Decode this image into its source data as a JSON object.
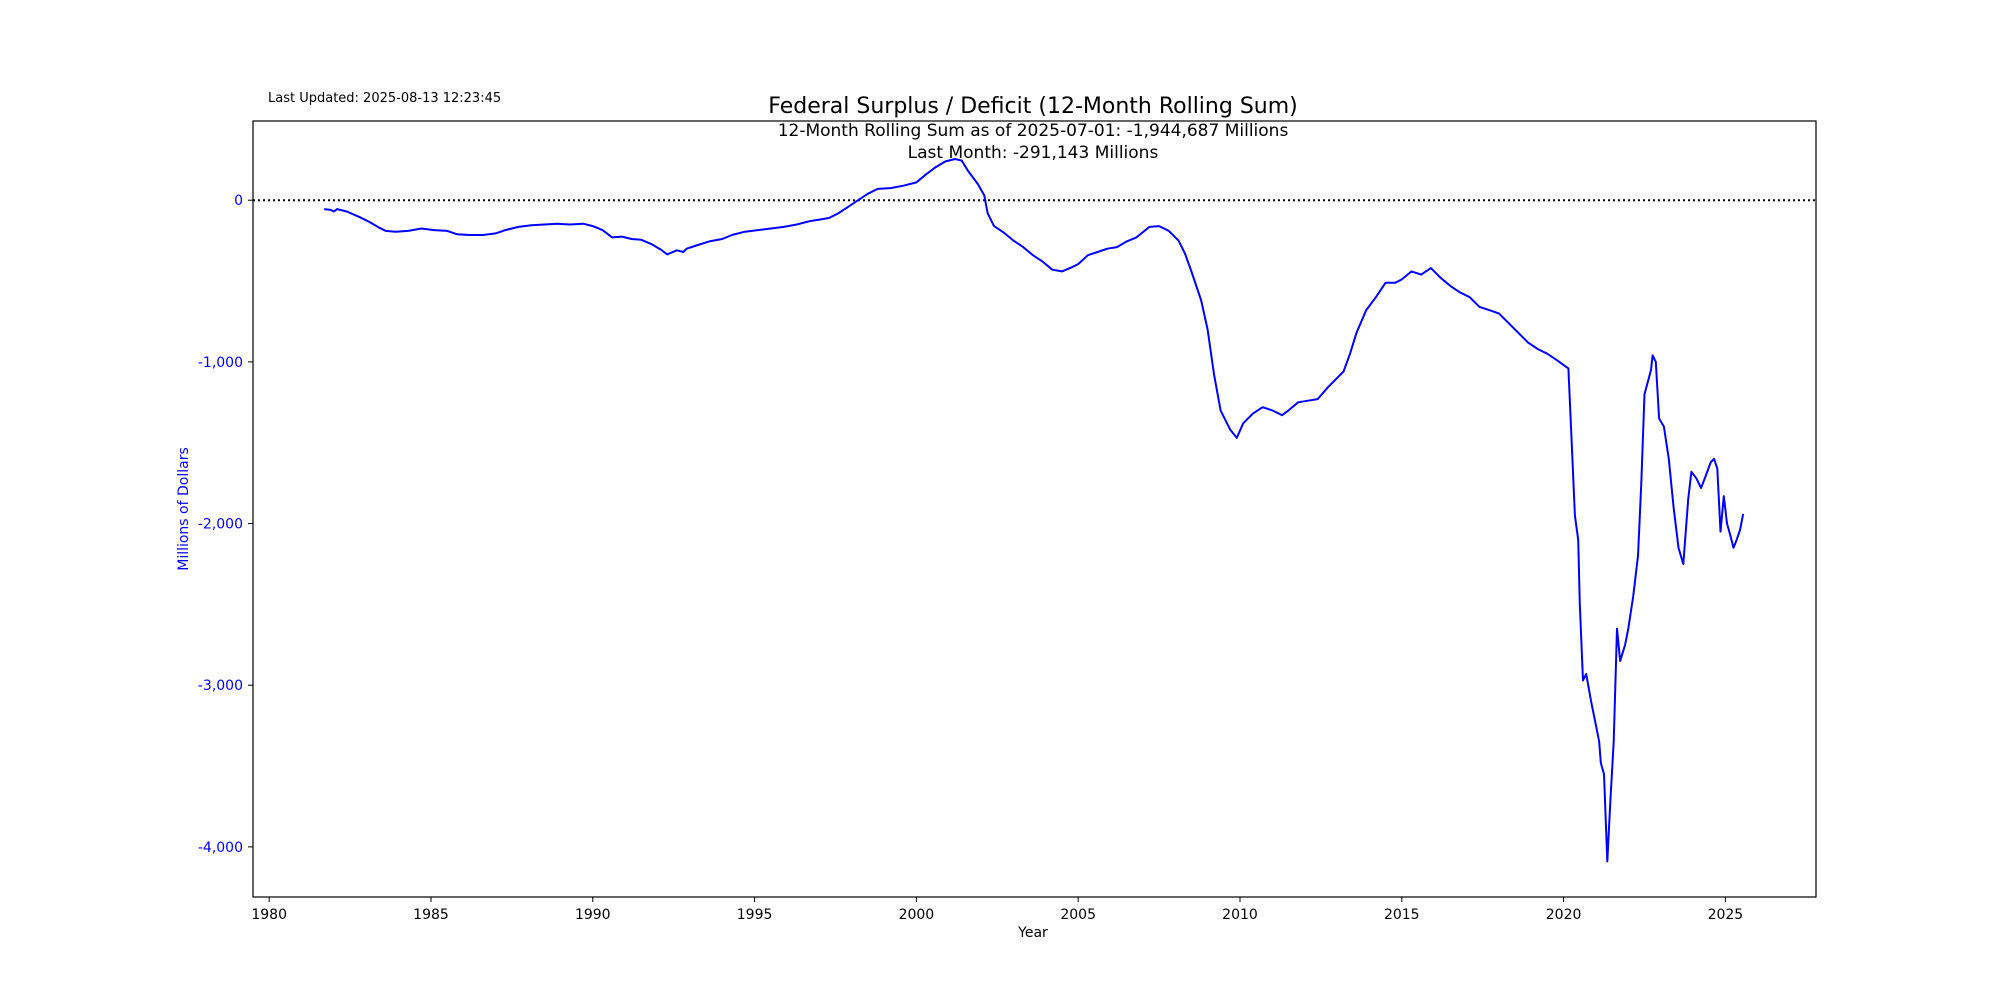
{
  "last_updated": "Last Updated: 2025-08-13 12:23:45",
  "chart_data": {
    "type": "line",
    "title": "Federal Surplus / Deficit (12-Month Rolling Sum)",
    "annotations": [
      "12-Month Rolling Sum as of 2025-07-01: -1,944,687 Millions",
      "Last Month: -291,143 Millions"
    ],
    "xlabel": "Year",
    "ylabel": "Millions of Dollars",
    "xlim": [
      1979.5,
      2027.8
    ],
    "ylim": [
      -4310,
      490
    ],
    "x_ticks": [
      1980,
      1985,
      1990,
      1995,
      2000,
      2005,
      2010,
      2015,
      2020,
      2025
    ],
    "x_tick_labels": [
      "1980",
      "1985",
      "1990",
      "1995",
      "2000",
      "2005",
      "2010",
      "2015",
      "2020",
      "2025"
    ],
    "y_ticks": [
      0,
      -1000,
      -2000,
      -3000,
      -4000
    ],
    "y_tick_labels": [
      "0",
      "-1,000",
      "-2,000",
      "-3,000",
      "-4,000"
    ],
    "reference_line": {
      "y": 0,
      "style": "dotted",
      "color": "#000000"
    },
    "grid": false,
    "colors": {
      "series": "#0000ff",
      "ylabel": "#0000ff",
      "yticks": "#0000ff"
    },
    "series": [
      {
        "points": [
          [
            1981.7,
            -55
          ],
          [
            1981.9,
            -60
          ],
          [
            1982.0,
            -70
          ],
          [
            1982.1,
            -55
          ],
          [
            1982.4,
            -70
          ],
          [
            1982.8,
            -105
          ],
          [
            1983.1,
            -135
          ],
          [
            1983.4,
            -170
          ],
          [
            1983.6,
            -190
          ],
          [
            1983.9,
            -195
          ],
          [
            1984.3,
            -190
          ],
          [
            1984.7,
            -175
          ],
          [
            1985.1,
            -185
          ],
          [
            1985.5,
            -190
          ],
          [
            1985.8,
            -210
          ],
          [
            1986.2,
            -215
          ],
          [
            1986.6,
            -215
          ],
          [
            1987.0,
            -205
          ],
          [
            1987.3,
            -185
          ],
          [
            1987.7,
            -165
          ],
          [
            1988.1,
            -155
          ],
          [
            1988.5,
            -150
          ],
          [
            1988.9,
            -145
          ],
          [
            1989.3,
            -150
          ],
          [
            1989.7,
            -145
          ],
          [
            1990.0,
            -160
          ],
          [
            1990.3,
            -185
          ],
          [
            1990.6,
            -230
          ],
          [
            1990.9,
            -225
          ],
          [
            1991.2,
            -240
          ],
          [
            1991.5,
            -245
          ],
          [
            1991.8,
            -270
          ],
          [
            1992.1,
            -305
          ],
          [
            1992.3,
            -335
          ],
          [
            1992.6,
            -310
          ],
          [
            1992.8,
            -320
          ],
          [
            1992.9,
            -300
          ],
          [
            1993.2,
            -280
          ],
          [
            1993.6,
            -255
          ],
          [
            1994.0,
            -240
          ],
          [
            1994.3,
            -215
          ],
          [
            1994.7,
            -195
          ],
          [
            1995.1,
            -185
          ],
          [
            1995.5,
            -175
          ],
          [
            1995.9,
            -165
          ],
          [
            1996.3,
            -150
          ],
          [
            1996.7,
            -130
          ],
          [
            1997.0,
            -120
          ],
          [
            1997.3,
            -110
          ],
          [
            1997.6,
            -80
          ],
          [
            1997.9,
            -40
          ],
          [
            1998.2,
            0
          ],
          [
            1998.5,
            40
          ],
          [
            1998.8,
            70
          ],
          [
            1999.2,
            75
          ],
          [
            1999.6,
            90
          ],
          [
            2000.0,
            110
          ],
          [
            2000.3,
            160
          ],
          [
            2000.6,
            205
          ],
          [
            2000.9,
            240
          ],
          [
            2001.2,
            255
          ],
          [
            2001.4,
            245
          ],
          [
            2001.6,
            180
          ],
          [
            2001.9,
            100
          ],
          [
            2002.1,
            30
          ],
          [
            2002.2,
            -80
          ],
          [
            2002.4,
            -160
          ],
          [
            2002.7,
            -200
          ],
          [
            2003.0,
            -250
          ],
          [
            2003.3,
            -290
          ],
          [
            2003.6,
            -340
          ],
          [
            2003.9,
            -380
          ],
          [
            2004.2,
            -430
          ],
          [
            2004.5,
            -440
          ],
          [
            2004.8,
            -415
          ],
          [
            2005.0,
            -395
          ],
          [
            2005.3,
            -340
          ],
          [
            2005.6,
            -320
          ],
          [
            2005.9,
            -300
          ],
          [
            2006.2,
            -290
          ],
          [
            2006.5,
            -255
          ],
          [
            2006.8,
            -230
          ],
          [
            2007.2,
            -165
          ],
          [
            2007.5,
            -160
          ],
          [
            2007.8,
            -190
          ],
          [
            2008.1,
            -250
          ],
          [
            2008.3,
            -330
          ],
          [
            2008.5,
            -440
          ],
          [
            2008.8,
            -620
          ],
          [
            2009.0,
            -800
          ],
          [
            2009.2,
            -1080
          ],
          [
            2009.4,
            -1300
          ],
          [
            2009.7,
            -1420
          ],
          [
            2009.9,
            -1470
          ],
          [
            2010.1,
            -1380
          ],
          [
            2010.4,
            -1320
          ],
          [
            2010.7,
            -1280
          ],
          [
            2011.0,
            -1300
          ],
          [
            2011.3,
            -1330
          ],
          [
            2011.5,
            -1300
          ],
          [
            2011.8,
            -1250
          ],
          [
            2012.1,
            -1240
          ],
          [
            2012.4,
            -1230
          ],
          [
            2012.7,
            -1160
          ],
          [
            2012.9,
            -1120
          ],
          [
            2013.2,
            -1060
          ],
          [
            2013.4,
            -950
          ],
          [
            2013.6,
            -820
          ],
          [
            2013.9,
            -680
          ],
          [
            2014.2,
            -600
          ],
          [
            2014.5,
            -510
          ],
          [
            2014.8,
            -510
          ],
          [
            2015.0,
            -490
          ],
          [
            2015.3,
            -440
          ],
          [
            2015.6,
            -460
          ],
          [
            2015.9,
            -420
          ],
          [
            2016.2,
            -480
          ],
          [
            2016.5,
            -530
          ],
          [
            2016.8,
            -570
          ],
          [
            2017.1,
            -600
          ],
          [
            2017.4,
            -660
          ],
          [
            2017.7,
            -680
          ],
          [
            2018.0,
            -700
          ],
          [
            2018.3,
            -760
          ],
          [
            2018.6,
            -820
          ],
          [
            2018.9,
            -880
          ],
          [
            2019.2,
            -920
          ],
          [
            2019.5,
            -950
          ],
          [
            2019.8,
            -990
          ],
          [
            2020.0,
            -1020
          ],
          [
            2020.15,
            -1040
          ],
          [
            2020.25,
            -1500
          ],
          [
            2020.35,
            -1950
          ],
          [
            2020.45,
            -2100
          ],
          [
            2020.5,
            -2500
          ],
          [
            2020.6,
            -2970
          ],
          [
            2020.7,
            -2930
          ],
          [
            2020.85,
            -3100
          ],
          [
            2021.0,
            -3250
          ],
          [
            2021.1,
            -3350
          ],
          [
            2021.15,
            -3480
          ],
          [
            2021.25,
            -3550
          ],
          [
            2021.35,
            -4090
          ],
          [
            2021.45,
            -3700
          ],
          [
            2021.55,
            -3350
          ],
          [
            2021.65,
            -2650
          ],
          [
            2021.75,
            -2850
          ],
          [
            2021.9,
            -2750
          ],
          [
            2022.0,
            -2650
          ],
          [
            2022.15,
            -2450
          ],
          [
            2022.3,
            -2200
          ],
          [
            2022.4,
            -1750
          ],
          [
            2022.5,
            -1200
          ],
          [
            2022.7,
            -1050
          ],
          [
            2022.75,
            -960
          ],
          [
            2022.85,
            -1000
          ],
          [
            2022.95,
            -1350
          ],
          [
            2023.1,
            -1400
          ],
          [
            2023.25,
            -1600
          ],
          [
            2023.4,
            -1900
          ],
          [
            2023.55,
            -2150
          ],
          [
            2023.7,
            -2250
          ],
          [
            2023.85,
            -1850
          ],
          [
            2023.95,
            -1680
          ],
          [
            2024.1,
            -1720
          ],
          [
            2024.25,
            -1780
          ],
          [
            2024.4,
            -1700
          ],
          [
            2024.55,
            -1620
          ],
          [
            2024.65,
            -1600
          ],
          [
            2024.75,
            -1660
          ],
          [
            2024.85,
            -2050
          ],
          [
            2024.95,
            -1830
          ],
          [
            2025.05,
            -2000
          ],
          [
            2025.15,
            -2070
          ],
          [
            2025.25,
            -2150
          ],
          [
            2025.35,
            -2100
          ],
          [
            2025.45,
            -2040
          ],
          [
            2025.5,
            -1990
          ],
          [
            2025.55,
            -1940
          ]
        ]
      }
    ]
  }
}
